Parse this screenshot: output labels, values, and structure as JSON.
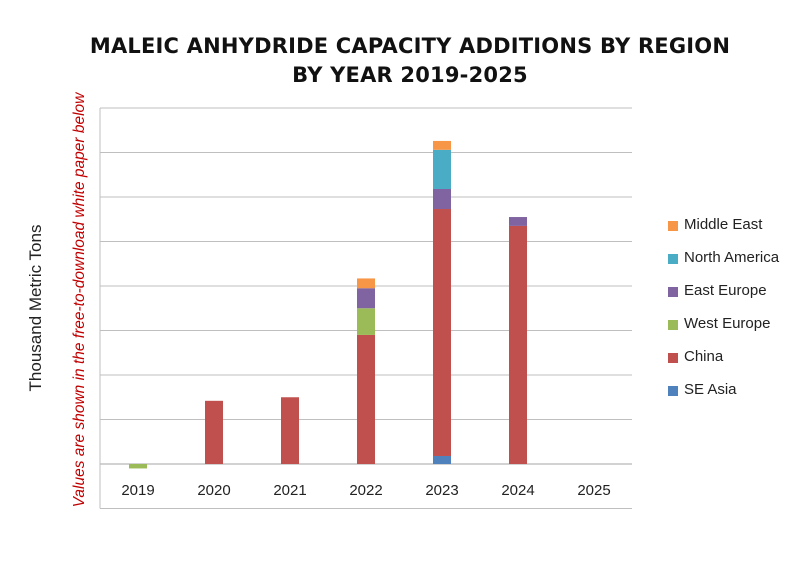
{
  "chart_data": {
    "type": "bar",
    "stacked": true,
    "title": "MALEIC ANHYDRIDE CAPACITY ADDITIONS BY REGION",
    "subtitle": "BY YEAR 2019-2025",
    "ylabel": "Thousand Metric Tons",
    "annotation": "Values are shown in the free-to-download white paper below",
    "categories": [
      "2019",
      "2020",
      "2021",
      "2022",
      "2023",
      "2024",
      "2025"
    ],
    "ylim": [
      -1,
      8
    ],
    "grid": true,
    "legend_position": "right",
    "series": [
      {
        "name": "SE Asia",
        "color": "#4f81bd",
        "values": [
          0,
          0,
          0,
          0,
          0.18,
          0,
          0
        ]
      },
      {
        "name": "China",
        "color": "#c0504d",
        "values": [
          0,
          1.42,
          1.5,
          2.9,
          5.55,
          5.35,
          0
        ]
      },
      {
        "name": "West Europe",
        "color": "#9bbb59",
        "values": [
          -0.1,
          0,
          0,
          0.6,
          0,
          0,
          0
        ]
      },
      {
        "name": "East Europe",
        "color": "#8064a2",
        "values": [
          0,
          0,
          0,
          0.45,
          0.45,
          0.2,
          0
        ]
      },
      {
        "name": "North America",
        "color": "#4bacc6",
        "values": [
          0,
          0,
          0,
          0,
          0.88,
          0,
          0
        ]
      },
      {
        "name": "Middle East",
        "color": "#f79646",
        "values": [
          0,
          0,
          0,
          0.22,
          0.2,
          0,
          0
        ]
      }
    ],
    "legend_order": [
      "Middle East",
      "North America",
      "East Europe",
      "West Europe",
      "China",
      "SE Asia"
    ]
  }
}
